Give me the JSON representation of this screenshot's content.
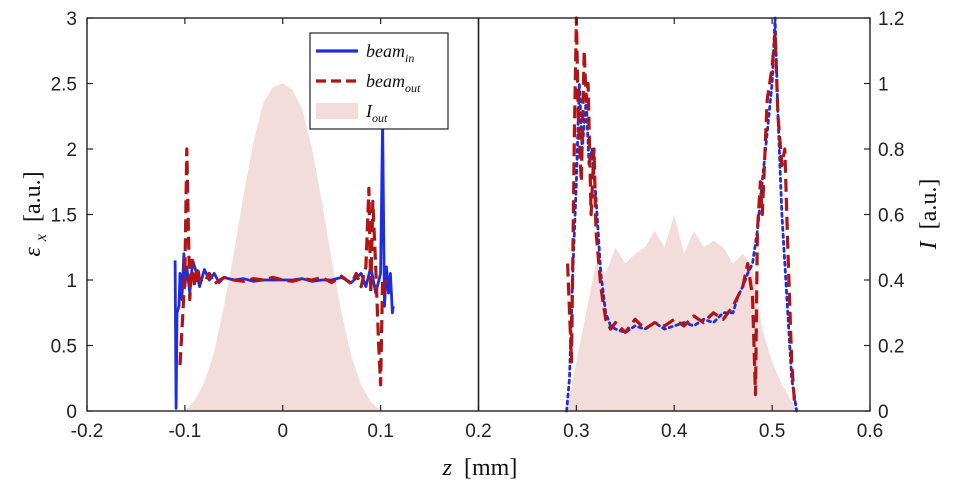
{
  "chart_data": {
    "type": "line",
    "title": "",
    "xlabel": {
      "symbol": "z",
      "unit": "[mm]"
    },
    "ylabel_left": {
      "symbol": "ε",
      "sub": "x",
      "unit": "[a.u.]"
    },
    "ylabel_right": {
      "symbol": "I",
      "unit": "[a.u.]"
    },
    "xlim": [
      -0.2,
      0.6
    ],
    "ylim_left": [
      0,
      3
    ],
    "ylim_right": [
      0,
      1.2
    ],
    "divider_x": 0.2,
    "xticks": [
      "-0.2",
      "-0.1",
      "0",
      "0.1",
      "0.2",
      "0.3",
      "0.4",
      "0.5",
      "0.6"
    ],
    "yticks_left": [
      "0",
      "0.5",
      "1",
      "1.5",
      "2",
      "2.5",
      "3"
    ],
    "yticks_right": [
      "0",
      "0.2",
      "0.4",
      "0.6",
      "0.8",
      "1",
      "1.2"
    ],
    "legend": {
      "position": "top-center",
      "entries": [
        {
          "base": "beam",
          "sub": "in",
          "style": "solid",
          "color": "#1f2de0"
        },
        {
          "base": "beam",
          "sub": "out",
          "style": "dashed",
          "color": "#b01515"
        },
        {
          "base": "I",
          "sub": "out",
          "style": "area",
          "color": "#f3dcdc"
        }
      ]
    },
    "series": [
      {
        "name": "beam_in (left panel, ε_x)",
        "axis": "left",
        "style": "solid",
        "color": "#1f2de0",
        "x": [
          -0.11,
          -0.109,
          -0.108,
          -0.106,
          -0.105,
          -0.103,
          -0.101,
          -0.1,
          -0.098,
          -0.095,
          -0.092,
          -0.088,
          -0.085,
          -0.08,
          -0.075,
          -0.07,
          -0.065,
          -0.06,
          -0.05,
          -0.04,
          -0.03,
          -0.02,
          -0.01,
          0,
          0.01,
          0.02,
          0.03,
          0.04,
          0.05,
          0.06,
          0.07,
          0.08,
          0.085,
          0.09,
          0.095,
          0.1,
          0.102,
          0.104,
          0.106,
          0.108,
          0.11,
          0.112,
          0.113
        ],
        "y": [
          1.15,
          0.02,
          0.75,
          0.8,
          1.05,
          0.85,
          1.2,
          0.95,
          1.1,
          0.9,
          1.15,
          1.05,
          0.95,
          1.08,
          1.0,
          1.05,
          0.98,
          1.02,
          1.0,
          1.01,
          0.99,
          1.0,
          1.0,
          1.0,
          1.0,
          1.01,
          0.99,
          1.0,
          1.0,
          1.02,
          0.98,
          1.05,
          0.95,
          1.1,
          0.9,
          1.05,
          2.2,
          0.8,
          1.1,
          0.9,
          1.05,
          0.75,
          0.8
        ]
      },
      {
        "name": "beam_out (left panel, ε_x)",
        "axis": "left",
        "style": "dashed",
        "color": "#b01515",
        "x": [
          -0.105,
          -0.102,
          -0.1,
          -0.098,
          -0.095,
          -0.093,
          -0.09,
          -0.087,
          -0.085,
          -0.08,
          -0.075,
          -0.07,
          -0.06,
          -0.05,
          -0.04,
          -0.03,
          -0.02,
          -0.01,
          0,
          0.01,
          0.02,
          0.03,
          0.04,
          0.05,
          0.06,
          0.07,
          0.075,
          0.08,
          0.085,
          0.088,
          0.09,
          0.092,
          0.095,
          0.098,
          0.1,
          0.102,
          0.104,
          0.106
        ],
        "y": [
          0.35,
          0.75,
          1.05,
          2.0,
          0.85,
          1.15,
          0.95,
          1.1,
          1.0,
          0.98,
          1.05,
          0.97,
          1.02,
          1.0,
          0.99,
          1.01,
          1.0,
          1.02,
          1.0,
          0.99,
          1.01,
          1.0,
          1.02,
          0.98,
          1.03,
          0.97,
          1.05,
          0.95,
          1.1,
          1.7,
          0.9,
          1.6,
          1.1,
          0.5,
          0.2,
          1.0,
          0.9,
          1.0
        ]
      },
      {
        "name": "beam_in (right panel, I)",
        "axis": "right",
        "style": "dotted",
        "color": "#1f2de0",
        "x": [
          0.29,
          0.293,
          0.296,
          0.3,
          0.303,
          0.306,
          0.31,
          0.313,
          0.316,
          0.32,
          0.325,
          0.33,
          0.335,
          0.34,
          0.35,
          0.36,
          0.37,
          0.38,
          0.39,
          0.4,
          0.41,
          0.42,
          0.43,
          0.44,
          0.45,
          0.46,
          0.465,
          0.47,
          0.475,
          0.48,
          0.485,
          0.49,
          0.495,
          0.5,
          0.503,
          0.506,
          0.51,
          0.515,
          0.52,
          0.525
        ],
        "y": [
          0.0,
          0.1,
          0.4,
          0.7,
          1.0,
          0.8,
          0.95,
          0.75,
          0.8,
          0.65,
          0.42,
          0.3,
          0.26,
          0.25,
          0.24,
          0.26,
          0.25,
          0.27,
          0.25,
          0.26,
          0.27,
          0.26,
          0.28,
          0.27,
          0.3,
          0.3,
          0.35,
          0.38,
          0.42,
          0.45,
          0.55,
          0.7,
          0.85,
          1.0,
          1.2,
          0.9,
          0.6,
          0.35,
          0.1,
          0.0
        ]
      },
      {
        "name": "beam_out (right panel, I)",
        "axis": "right",
        "style": "dashed",
        "color": "#b01515",
        "x": [
          0.291,
          0.295,
          0.298,
          0.3,
          0.302,
          0.305,
          0.308,
          0.31,
          0.312,
          0.315,
          0.318,
          0.32,
          0.325,
          0.33,
          0.335,
          0.34,
          0.35,
          0.36,
          0.37,
          0.38,
          0.39,
          0.4,
          0.41,
          0.42,
          0.43,
          0.44,
          0.45,
          0.46,
          0.47,
          0.475,
          0.48,
          0.483,
          0.485,
          0.488,
          0.49,
          0.495,
          0.5,
          0.503,
          0.506,
          0.51,
          0.513,
          0.516,
          0.52,
          0.523
        ],
        "y": [
          0.45,
          0.15,
          0.85,
          1.2,
          0.9,
          0.7,
          1.1,
          0.95,
          1.0,
          0.6,
          0.8,
          0.55,
          0.38,
          0.28,
          0.25,
          0.27,
          0.24,
          0.28,
          0.25,
          0.27,
          0.26,
          0.28,
          0.26,
          0.29,
          0.27,
          0.3,
          0.28,
          0.32,
          0.38,
          0.45,
          0.35,
          0.05,
          0.55,
          0.7,
          0.6,
          0.95,
          1.05,
          1.15,
          0.9,
          0.75,
          0.8,
          0.5,
          0.15,
          0.02
        ]
      }
    ],
    "areas": [
      {
        "name": "I_out (left panel)",
        "axis": "left",
        "color": "#f3dcdc",
        "x": [
          -0.1,
          -0.09,
          -0.08,
          -0.07,
          -0.06,
          -0.05,
          -0.04,
          -0.03,
          -0.02,
          -0.01,
          0,
          0.01,
          0.02,
          0.03,
          0.04,
          0.05,
          0.06,
          0.07,
          0.08,
          0.09,
          0.1
        ],
        "y": [
          0.0,
          0.08,
          0.22,
          0.45,
          0.8,
          1.2,
          1.65,
          2.05,
          2.35,
          2.47,
          2.5,
          2.45,
          2.3,
          2.0,
          1.6,
          1.15,
          0.75,
          0.42,
          0.2,
          0.07,
          0.0
        ]
      },
      {
        "name": "I_out (right panel)",
        "axis": "right",
        "color": "#f3dcdc",
        "x": [
          0.29,
          0.3,
          0.31,
          0.32,
          0.33,
          0.34,
          0.35,
          0.36,
          0.37,
          0.38,
          0.39,
          0.4,
          0.41,
          0.42,
          0.43,
          0.44,
          0.45,
          0.46,
          0.47,
          0.48,
          0.49,
          0.5,
          0.51,
          0.52,
          0.53
        ],
        "y": [
          0.0,
          0.15,
          0.3,
          0.45,
          0.42,
          0.5,
          0.45,
          0.48,
          0.5,
          0.55,
          0.5,
          0.6,
          0.48,
          0.55,
          0.5,
          0.52,
          0.5,
          0.45,
          0.48,
          0.44,
          0.25,
          0.15,
          0.08,
          0.03,
          0.0
        ]
      }
    ]
  }
}
